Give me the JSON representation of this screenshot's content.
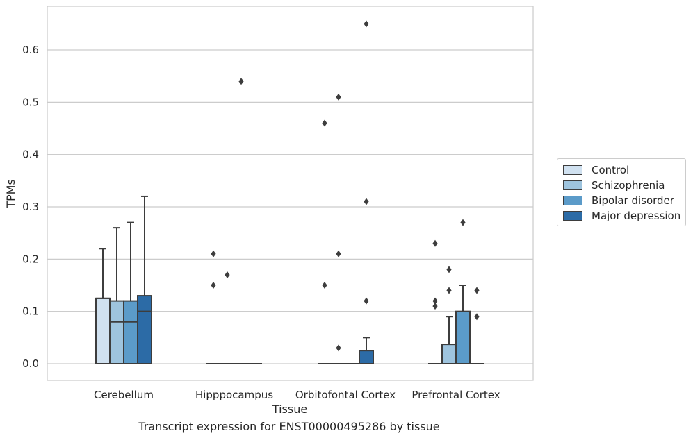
{
  "chart_data": {
    "type": "box",
    "xlabel": "Tissue",
    "ylabel": "TPMs",
    "caption": "Transcript expression for ENST00000495286 by tissue",
    "categories": [
      "Cerebellum",
      "Hipppocampus",
      "Orbitofontal Cortex",
      "Prefrontal Cortex"
    ],
    "ylim": [
      -0.032,
      0.685
    ],
    "yticks": [
      0.0,
      0.1,
      0.2,
      0.3,
      0.4,
      0.5,
      0.6
    ],
    "ytick_labels": [
      "0.0",
      "0.1",
      "0.2",
      "0.3",
      "0.4",
      "0.5",
      "0.6"
    ],
    "grid": "horizontal",
    "legend_position": "right",
    "series": [
      {
        "name": "Control",
        "color": "#d0e1f0",
        "boxes": [
          {
            "q1": 0,
            "median": 0.125,
            "q3": 0.125,
            "whisker_low": 0,
            "whisker_high": 0.22,
            "outliers": []
          },
          {
            "q1": 0,
            "median": 0,
            "q3": 0,
            "whisker_low": 0,
            "whisker_high": 0,
            "outliers": [
              0.21,
              0.15
            ]
          },
          {
            "q1": 0,
            "median": 0,
            "q3": 0,
            "whisker_low": 0,
            "whisker_high": 0,
            "outliers": [
              0.46,
              0.15
            ]
          },
          {
            "q1": 0,
            "median": 0,
            "q3": 0,
            "whisker_low": 0,
            "whisker_high": 0,
            "outliers": [
              0.23,
              0.12,
              0.11
            ]
          }
        ]
      },
      {
        "name": "Schizophrenia",
        "color": "#9ec4de",
        "boxes": [
          {
            "q1": 0,
            "median": 0.08,
            "q3": 0.12,
            "whisker_low": 0,
            "whisker_high": 0.26,
            "outliers": []
          },
          {
            "q1": 0,
            "median": 0,
            "q3": 0,
            "whisker_low": 0,
            "whisker_high": 0,
            "outliers": [
              0.17
            ]
          },
          {
            "q1": 0,
            "median": 0,
            "q3": 0,
            "whisker_low": 0,
            "whisker_high": 0,
            "outliers": [
              0.51,
              0.21,
              0.03
            ]
          },
          {
            "q1": 0,
            "median": 0,
            "q3": 0.037,
            "whisker_low": 0,
            "whisker_high": 0.09,
            "outliers": [
              0.18,
              0.14
            ]
          }
        ]
      },
      {
        "name": "Bipolar disorder",
        "color": "#5b9bc9",
        "boxes": [
          {
            "q1": 0,
            "median": 0.08,
            "q3": 0.12,
            "whisker_low": 0,
            "whisker_high": 0.27,
            "outliers": []
          },
          {
            "q1": 0,
            "median": 0,
            "q3": 0,
            "whisker_low": 0,
            "whisker_high": 0,
            "outliers": [
              0.54
            ]
          },
          {
            "q1": 0,
            "median": 0,
            "q3": 0,
            "whisker_low": 0,
            "whisker_high": 0,
            "outliers": []
          },
          {
            "q1": 0,
            "median": 0,
            "q3": 0.1,
            "whisker_low": 0,
            "whisker_high": 0.15,
            "outliers": [
              0.27
            ]
          }
        ]
      },
      {
        "name": "Major depression",
        "color": "#2c6ba6",
        "boxes": [
          {
            "q1": 0,
            "median": 0.1,
            "q3": 0.13,
            "whisker_low": 0,
            "whisker_high": 0.32,
            "outliers": []
          },
          {
            "q1": 0,
            "median": 0,
            "q3": 0,
            "whisker_low": 0,
            "whisker_high": 0,
            "outliers": []
          },
          {
            "q1": 0,
            "median": 0,
            "q3": 0.025,
            "whisker_low": 0,
            "whisker_high": 0.05,
            "outliers": [
              0.65,
              0.31,
              0.12
            ]
          },
          {
            "q1": 0,
            "median": 0,
            "q3": 0,
            "whisker_low": 0,
            "whisker_high": 0,
            "outliers": [
              0.14,
              0.09
            ]
          }
        ]
      }
    ]
  }
}
